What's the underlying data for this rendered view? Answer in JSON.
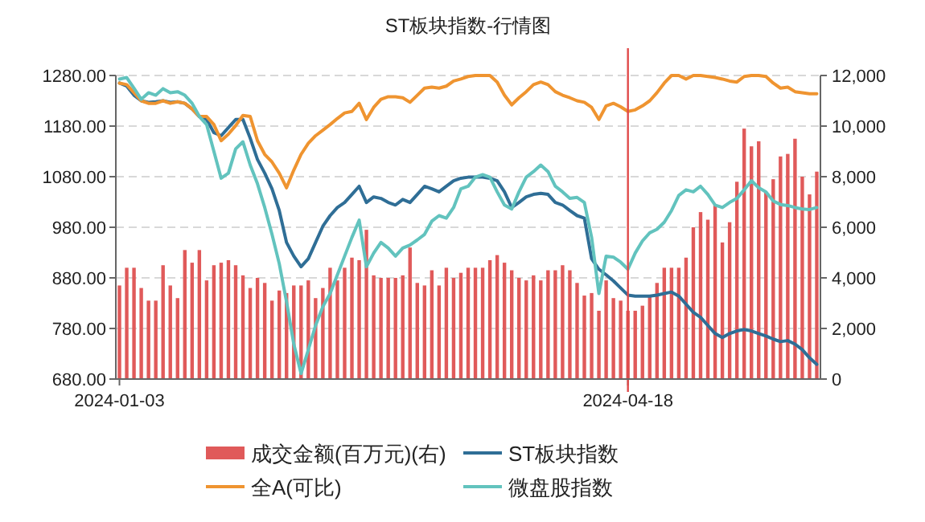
{
  "chart_data": {
    "type": "line",
    "title": "ST板块指数-行情图",
    "categories": [
      "2024-01-03",
      null,
      null,
      null,
      null,
      null,
      null,
      null,
      null,
      null,
      null,
      null,
      null,
      null,
      null,
      null,
      null,
      null,
      null,
      null,
      null,
      null,
      null,
      null,
      null,
      null,
      null,
      null,
      null,
      null,
      null,
      null,
      null,
      null,
      null,
      null,
      null,
      null,
      null,
      null,
      null,
      null,
      null,
      null,
      null,
      null,
      null,
      null,
      null,
      null,
      null,
      null,
      null,
      null,
      null,
      null,
      null,
      null,
      null,
      null,
      null,
      null,
      null,
      null,
      null,
      null,
      null,
      null,
      null,
      null,
      "2024-04-18",
      null,
      null,
      null,
      null,
      null,
      null,
      null,
      null,
      null,
      null,
      null,
      null,
      null,
      null,
      null,
      null,
      null,
      null,
      null,
      null,
      null,
      null,
      null,
      null,
      null,
      null
    ],
    "series": [
      {
        "name": "成交金额(百万元)(右)",
        "type": "bar",
        "axis": "y2",
        "color": "#e05a5a",
        "values": [
          3700,
          4400,
          4400,
          3600,
          3100,
          3100,
          4500,
          3700,
          3200,
          5100,
          4600,
          5100,
          3900,
          4500,
          4600,
          4700,
          4500,
          4100,
          3600,
          4000,
          3800,
          3100,
          3500,
          3400,
          3700,
          3700,
          3900,
          3200,
          3600,
          4400,
          3900,
          4400,
          4800,
          4700,
          5900,
          4100,
          4000,
          4000,
          4000,
          4100,
          5200,
          3800,
          3700,
          4300,
          3700,
          4400,
          4000,
          4200,
          4400,
          4400,
          4400,
          4700,
          4900,
          4600,
          4300,
          4000,
          3900,
          4100,
          3900,
          4300,
          4300,
          4500,
          4300,
          3800,
          3300,
          3400,
          2700,
          3900,
          3200,
          3100,
          2700,
          2700,
          2900,
          3300,
          3800,
          4400,
          4400,
          4400,
          4800,
          6000,
          6600,
          6300,
          6900,
          5400,
          6200,
          7800,
          9900,
          9200,
          9400,
          7400,
          7900,
          8800,
          8900,
          9500,
          8000,
          7300,
          8200
        ]
      },
      {
        "name": "ST板块指数",
        "color": "#2f6e96",
        "values": [
          1265,
          1259,
          1241,
          1230,
          1227,
          1228,
          1230,
          1227,
          1228,
          1225,
          1214,
          1199,
          1193,
          1167,
          1161,
          1177,
          1193,
          1193,
          1156,
          1114,
          1087,
          1056,
          1013,
          950,
          923,
          902,
          918,
          950,
          982,
          1003,
          1019,
          1029,
          1045,
          1061,
          1029,
          1040,
          1037,
          1029,
          1024,
          1035,
          1029,
          1045,
          1061,
          1056,
          1050,
          1061,
          1072,
          1077,
          1079,
          1079,
          1079,
          1077,
          1072,
          1050,
          1019,
          1029,
          1040,
          1045,
          1047,
          1045,
          1029,
          1024,
          1013,
          1003,
          998,
          918,
          897,
          886,
          874,
          860,
          846,
          844,
          844,
          844,
          846,
          849,
          852,
          844,
          828,
          812,
          802,
          786,
          770,
          762,
          770,
          775,
          778,
          775,
          770,
          765,
          759,
          754,
          756,
          749,
          738,
          722,
          709
        ]
      },
      {
        "name": "全A(可比)",
        "color": "#ef9430",
        "values": [
          1265,
          1262,
          1246,
          1230,
          1225,
          1225,
          1230,
          1225,
          1228,
          1225,
          1214,
          1199,
          1199,
          1183,
          1151,
          1164,
          1181,
          1201,
          1199,
          1151,
          1124,
          1109,
          1087,
          1058,
          1093,
          1124,
          1146,
          1161,
          1172,
          1183,
          1195,
          1206,
          1209,
          1225,
          1193,
          1217,
          1233,
          1238,
          1238,
          1236,
          1227,
          1241,
          1255,
          1257,
          1255,
          1259,
          1269,
          1273,
          1278,
          1280,
          1280,
          1280,
          1267,
          1241,
          1222,
          1236,
          1248,
          1262,
          1267,
          1262,
          1248,
          1241,
          1236,
          1230,
          1227,
          1217,
          1193,
          1220,
          1225,
          1218,
          1209,
          1212,
          1220,
          1230,
          1246,
          1265,
          1280,
          1280,
          1273,
          1280,
          1280,
          1278,
          1276,
          1273,
          1269,
          1267,
          1278,
          1280,
          1280,
          1278,
          1265,
          1255,
          1257,
          1248,
          1246,
          1244,
          1244
        ]
      },
      {
        "name": "微盘股指数",
        "color": "#62c3be",
        "values": [
          1273,
          1276,
          1255,
          1233,
          1246,
          1241,
          1254,
          1246,
          1248,
          1241,
          1225,
          1199,
          1183,
          1130,
          1077,
          1087,
          1135,
          1149,
          1103,
          1066,
          1019,
          966,
          908,
          833,
          749,
          691,
          738,
          786,
          823,
          849,
          886,
          923,
          960,
          994,
          902,
          929,
          950,
          939,
          923,
          939,
          945,
          955,
          966,
          992,
          1003,
          998,
          1019,
          1056,
          1061,
          1079,
          1084,
          1079,
          1050,
          1024,
          1016,
          1050,
          1079,
          1090,
          1103,
          1090,
          1061,
          1050,
          1037,
          1039,
          1029,
          960,
          849,
          923,
          921,
          911,
          897,
          929,
          953,
          969,
          976,
          990,
          1013,
          1043,
          1054,
          1050,
          1061,
          1045,
          1024,
          1019,
          1029,
          1037,
          1054,
          1072,
          1058,
          1050,
          1032,
          1025,
          1023,
          1019,
          1016,
          1015,
          1019
        ]
      }
    ],
    "ylim": [
      680,
      1280
    ],
    "yticks": [
      {
        "value": 680,
        "label": "680.00"
      },
      {
        "value": 780,
        "label": "780.00"
      },
      {
        "value": 880,
        "label": "880.00"
      },
      {
        "value": 980,
        "label": "980.00"
      },
      {
        "value": 1080,
        "label": "1080.00"
      },
      {
        "value": 1180,
        "label": "1180.00"
      },
      {
        "value": 1280,
        "label": "1280.00"
      }
    ],
    "y2lim": [
      0,
      12000
    ],
    "y2ticks": [
      0,
      {
        "value": 2000,
        "label": "2,000"
      },
      {
        "value": 4000,
        "label": "4,000"
      },
      {
        "value": 6000,
        "label": "6,000"
      },
      {
        "value": 8000,
        "label": "8,000"
      },
      {
        "value": 10000,
        "label": "10,000"
      },
      {
        "value": 12000,
        "label": "12,000"
      }
    ],
    "ref_lines": [
      {
        "axis": "x",
        "value": "2024-04-18",
        "color": "#e04a4a"
      }
    ],
    "grid": "y",
    "legend": "bottom"
  }
}
